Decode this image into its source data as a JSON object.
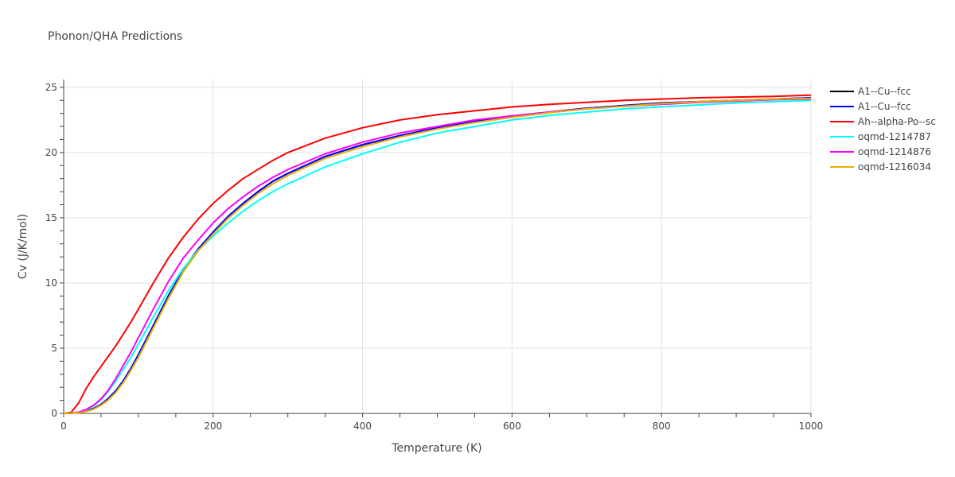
{
  "chart_data": {
    "type": "line",
    "title": "Phonon/QHA Predictions",
    "xlabel": "Temperature (K)",
    "ylabel": "Cv (J/K/mol)",
    "xlim": [
      0,
      1000
    ],
    "ylim": [
      0,
      25.6
    ],
    "xticks": [
      0,
      200,
      400,
      600,
      800,
      1000
    ],
    "yticks": [
      0,
      5,
      10,
      15,
      20,
      25
    ],
    "grid": true,
    "legend_position": "top-right",
    "x": [
      0,
      10,
      20,
      30,
      40,
      50,
      60,
      70,
      80,
      90,
      100,
      120,
      140,
      160,
      180,
      200,
      220,
      240,
      260,
      280,
      300,
      350,
      400,
      450,
      500,
      550,
      600,
      650,
      700,
      750,
      800,
      850,
      900,
      950,
      1000
    ],
    "series": [
      {
        "name": "A1--Cu--fcc",
        "color": "#000000",
        "values": [
          0,
          0.01,
          0.05,
          0.17,
          0.37,
          0.69,
          1.15,
          1.75,
          2.52,
          3.45,
          4.5,
          6.75,
          9.0,
          11.0,
          12.6,
          13.9,
          15.1,
          16.1,
          17.0,
          17.8,
          18.4,
          19.7,
          20.6,
          21.3,
          21.9,
          22.4,
          22.8,
          23.1,
          23.4,
          23.6,
          23.8,
          23.9,
          24.0,
          24.1,
          24.2
        ]
      },
      {
        "name": "A1--Cu--fcc",
        "color": "#0000ff",
        "values": [
          0,
          0.01,
          0.05,
          0.17,
          0.37,
          0.69,
          1.15,
          1.75,
          2.52,
          3.45,
          4.5,
          6.75,
          9.0,
          11.0,
          12.6,
          13.9,
          15.1,
          16.1,
          17.0,
          17.8,
          18.4,
          19.7,
          20.6,
          21.3,
          21.9,
          22.4,
          22.8,
          23.1,
          23.4,
          23.6,
          23.8,
          23.9,
          24.0,
          24.1,
          24.2
        ]
      },
      {
        "name": "Ah--alpha-Po--sc",
        "color": "#ff0000",
        "values": [
          0,
          0.08,
          0.8,
          1.9,
          2.8,
          3.6,
          4.4,
          5.2,
          6.1,
          7.0,
          8.0,
          10.0,
          11.9,
          13.5,
          14.9,
          16.1,
          17.1,
          18.0,
          18.7,
          19.4,
          20.0,
          21.1,
          21.9,
          22.5,
          22.9,
          23.2,
          23.5,
          23.7,
          23.85,
          24.0,
          24.1,
          24.2,
          24.25,
          24.3,
          24.4
        ]
      },
      {
        "name": "oqmd-1214787",
        "color": "#00ffff",
        "values": [
          0,
          0.02,
          0.08,
          0.26,
          0.56,
          1.05,
          1.7,
          2.5,
          3.4,
          4.3,
          5.3,
          7.4,
          9.4,
          11.1,
          12.5,
          13.6,
          14.6,
          15.5,
          16.3,
          17.0,
          17.6,
          18.9,
          19.9,
          20.8,
          21.5,
          22.0,
          22.5,
          22.85,
          23.1,
          23.35,
          23.5,
          23.65,
          23.8,
          23.9,
          24.0
        ]
      },
      {
        "name": "oqmd-1214876",
        "color": "#ff00ff",
        "values": [
          0,
          0.02,
          0.09,
          0.3,
          0.62,
          1.12,
          1.8,
          2.7,
          3.7,
          4.7,
          5.8,
          8.0,
          10.1,
          11.9,
          13.3,
          14.6,
          15.7,
          16.6,
          17.4,
          18.1,
          18.7,
          19.9,
          20.8,
          21.5,
          22.0,
          22.5,
          22.8,
          23.1,
          23.35,
          23.55,
          23.7,
          23.85,
          23.95,
          24.05,
          24.1
        ]
      },
      {
        "name": "oqmd-1216034",
        "color": "#e6b000",
        "values": [
          0,
          0.01,
          0.04,
          0.14,
          0.32,
          0.62,
          1.05,
          1.62,
          2.38,
          3.3,
          4.3,
          6.55,
          8.8,
          10.85,
          12.45,
          13.75,
          14.95,
          15.95,
          16.85,
          17.6,
          18.25,
          19.55,
          20.45,
          21.2,
          21.8,
          22.3,
          22.7,
          23.05,
          23.35,
          23.55,
          23.75,
          23.9,
          24.0,
          24.1,
          24.15
        ]
      }
    ]
  }
}
